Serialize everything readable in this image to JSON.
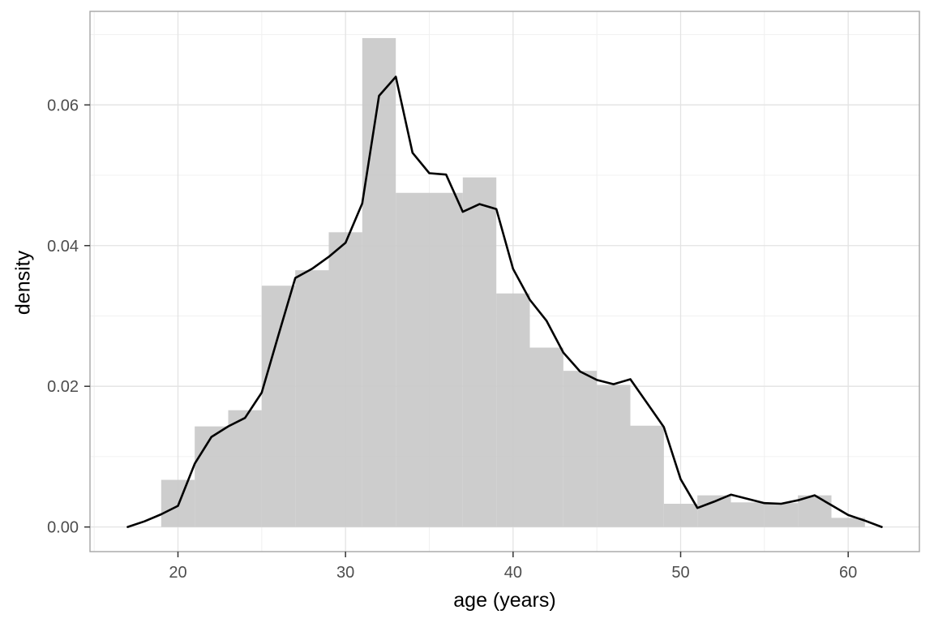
{
  "figure": {
    "background": "#ffffff"
  },
  "chart_data": {
    "type": "bar",
    "subtype": "histogram_with_density_line",
    "title": "",
    "xlabel": "age (years)",
    "ylabel": "density",
    "legend": "none",
    "axes": {
      "xlim": [
        14.75,
        64.25
      ],
      "ylim": [
        -0.0035,
        0.0733
      ],
      "x_major_ticks": [
        20,
        30,
        40,
        50,
        60
      ],
      "x_tick_labels": [
        "20",
        "30",
        "40",
        "50",
        "60"
      ],
      "x_minor_gridlines": [
        15,
        25,
        35,
        45,
        55
      ],
      "y_major_ticks": [
        0.0,
        0.02,
        0.04,
        0.06
      ],
      "y_tick_labels": [
        "0.00",
        "0.02",
        "0.04",
        "0.06"
      ],
      "y_minor_gridlines": [
        0.01,
        0.03,
        0.05,
        0.07
      ],
      "grid": "on"
    },
    "histogram": {
      "binwidth": 2,
      "bins": [
        {
          "from": 19,
          "to": 21,
          "density": 0.0067
        },
        {
          "from": 21,
          "to": 23,
          "density": 0.0143
        },
        {
          "from": 23,
          "to": 25,
          "density": 0.0166
        },
        {
          "from": 25,
          "to": 27,
          "density": 0.0343
        },
        {
          "from": 27,
          "to": 29,
          "density": 0.0365
        },
        {
          "from": 29,
          "to": 31,
          "density": 0.0419
        },
        {
          "from": 31,
          "to": 33,
          "density": 0.0695
        },
        {
          "from": 33,
          "to": 35,
          "density": 0.0475
        },
        {
          "from": 35,
          "to": 37,
          "density": 0.0475
        },
        {
          "from": 37,
          "to": 39,
          "density": 0.0497
        },
        {
          "from": 39,
          "to": 41,
          "density": 0.0332
        },
        {
          "from": 41,
          "to": 43,
          "density": 0.0255
        },
        {
          "from": 43,
          "to": 45,
          "density": 0.0222
        },
        {
          "from": 45,
          "to": 47,
          "density": 0.0202
        },
        {
          "from": 47,
          "to": 49,
          "density": 0.0144
        },
        {
          "from": 49,
          "to": 51,
          "density": 0.0033
        },
        {
          "from": 51,
          "to": 53,
          "density": 0.0045
        },
        {
          "from": 53,
          "to": 55,
          "density": 0.0035
        },
        {
          "from": 55,
          "to": 57,
          "density": 0.0034
        },
        {
          "from": 57,
          "to": 59,
          "density": 0.0045
        },
        {
          "from": 59,
          "to": 61,
          "density": 0.0013
        }
      ]
    },
    "density_line": {
      "points": [
        [
          17,
          0.0
        ],
        [
          18,
          0.0008
        ],
        [
          19,
          0.0018
        ],
        [
          20,
          0.003
        ],
        [
          21,
          0.009
        ],
        [
          22,
          0.0128
        ],
        [
          23,
          0.0143
        ],
        [
          24,
          0.0155
        ],
        [
          25,
          0.0191
        ],
        [
          26,
          0.0273
        ],
        [
          27,
          0.0354
        ],
        [
          28,
          0.0367
        ],
        [
          29,
          0.0384
        ],
        [
          30,
          0.0404
        ],
        [
          31,
          0.046
        ],
        [
          32,
          0.0613
        ],
        [
          33,
          0.064
        ],
        [
          34,
          0.0532
        ],
        [
          35,
          0.0503
        ],
        [
          36,
          0.0501
        ],
        [
          37,
          0.0448
        ],
        [
          38,
          0.0459
        ],
        [
          39,
          0.0452
        ],
        [
          40,
          0.0367
        ],
        [
          41,
          0.0323
        ],
        [
          42,
          0.0293
        ],
        [
          43,
          0.0248
        ],
        [
          44,
          0.0221
        ],
        [
          45,
          0.0209
        ],
        [
          46,
          0.0203
        ],
        [
          47,
          0.021
        ],
        [
          48,
          0.0176
        ],
        [
          49,
          0.0142
        ],
        [
          50,
          0.0068
        ],
        [
          51,
          0.0027
        ],
        [
          52,
          0.0036
        ],
        [
          53,
          0.0046
        ],
        [
          54,
          0.004
        ],
        [
          55,
          0.0034
        ],
        [
          56,
          0.0033
        ],
        [
          57,
          0.0038
        ],
        [
          58,
          0.0045
        ],
        [
          59,
          0.0031
        ],
        [
          60,
          0.0017
        ],
        [
          61,
          0.0009
        ],
        [
          62,
          0.0
        ]
      ]
    },
    "style": {
      "bar_fill": "#c9c9c9",
      "bar_opacity": 0.93,
      "line_color": "#000000",
      "line_width": 2.6,
      "panel_background": "#ffffff",
      "panel_border": "#a6a6a6",
      "grid_major": "#e3e3e3",
      "grid_minor": "#f0f0f0",
      "tick_mark_color": "#333333",
      "tick_label_color": "#4d4d4d",
      "axis_title_color": "#000000"
    }
  }
}
